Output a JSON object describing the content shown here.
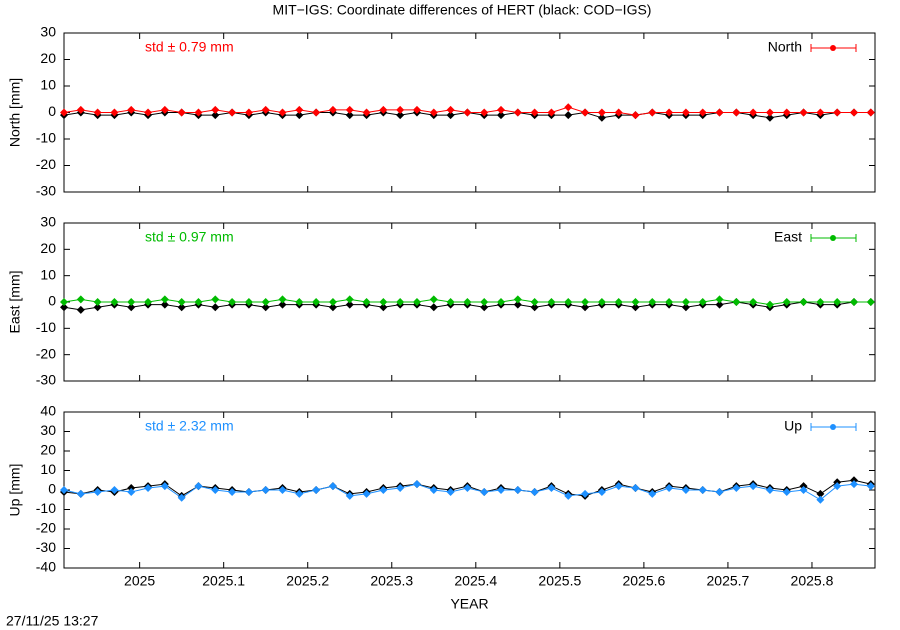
{
  "title": "MIT−IGS: Coordinate differences of HERT (black: COD−IGS)",
  "timestamp": "27/11/25 13:27",
  "chart_data": [
    {
      "type": "line",
      "ylabel": "North [mm]",
      "annotation": "std ± 0.79 mm",
      "ylim": [
        -30,
        30
      ],
      "yticks": [
        -30,
        -20,
        -10,
        0,
        10,
        20,
        30
      ],
      "xlim": [
        2024.91,
        2025.875
      ],
      "x": [
        2024.91,
        2024.93,
        2024.95,
        2024.97,
        2024.99,
        2025.01,
        2025.03,
        2025.05,
        2025.07,
        2025.09,
        2025.11,
        2025.13,
        2025.15,
        2025.17,
        2025.19,
        2025.21,
        2025.23,
        2025.25,
        2025.27,
        2025.29,
        2025.31,
        2025.33,
        2025.35,
        2025.37,
        2025.39,
        2025.41,
        2025.43,
        2025.45,
        2025.47,
        2025.49,
        2025.51,
        2025.53,
        2025.55,
        2025.57,
        2025.59,
        2025.61,
        2025.63,
        2025.65,
        2025.67,
        2025.69,
        2025.71,
        2025.73,
        2025.75,
        2025.77,
        2025.79,
        2025.81,
        2025.83,
        2025.85,
        2025.87
      ],
      "series": [
        {
          "color": "#000000",
          "values": [
            -1,
            0,
            -1,
            -1,
            0,
            -1,
            0,
            0,
            -1,
            -1,
            0,
            -1,
            0,
            -1,
            -1,
            0,
            0,
            -1,
            -1,
            0,
            -1,
            0,
            -1,
            -1,
            0,
            -1,
            -1,
            0,
            -1,
            -1,
            -1,
            0,
            -2,
            -1,
            -1,
            0,
            -1,
            -1,
            -1,
            0,
            0,
            -1,
            -2,
            -1,
            0,
            -1,
            0,
            0,
            0
          ]
        },
        {
          "name": "North",
          "color": "#ff0000",
          "values": [
            0,
            1,
            0,
            0,
            1,
            0,
            1,
            0,
            0,
            1,
            0,
            0,
            1,
            0,
            1,
            0,
            1,
            1,
            0,
            1,
            1,
            1,
            0,
            1,
            0,
            0,
            1,
            0,
            0,
            0,
            2,
            0,
            0,
            0,
            -1,
            0,
            0,
            0,
            0,
            0,
            0,
            0,
            0,
            0,
            0,
            0,
            0,
            0,
            0
          ]
        }
      ]
    },
    {
      "type": "line",
      "ylabel": "East [mm]",
      "annotation": "std ± 0.97 mm",
      "ylim": [
        -30,
        30
      ],
      "yticks": [
        -30,
        -20,
        -10,
        0,
        10,
        20,
        30
      ],
      "xlim": [
        2024.91,
        2025.875
      ],
      "x": [
        2024.91,
        2024.93,
        2024.95,
        2024.97,
        2024.99,
        2025.01,
        2025.03,
        2025.05,
        2025.07,
        2025.09,
        2025.11,
        2025.13,
        2025.15,
        2025.17,
        2025.19,
        2025.21,
        2025.23,
        2025.25,
        2025.27,
        2025.29,
        2025.31,
        2025.33,
        2025.35,
        2025.37,
        2025.39,
        2025.41,
        2025.43,
        2025.45,
        2025.47,
        2025.49,
        2025.51,
        2025.53,
        2025.55,
        2025.57,
        2025.59,
        2025.61,
        2025.63,
        2025.65,
        2025.67,
        2025.69,
        2025.71,
        2025.73,
        2025.75,
        2025.77,
        2025.79,
        2025.81,
        2025.83,
        2025.85,
        2025.87
      ],
      "series": [
        {
          "color": "#000000",
          "values": [
            -2,
            -3,
            -2,
            -1,
            -2,
            -1,
            -1,
            -2,
            -1,
            -2,
            -1,
            -1,
            -2,
            -1,
            -1,
            -1,
            -2,
            -1,
            -1,
            -2,
            -1,
            -1,
            -2,
            -1,
            -1,
            -2,
            -1,
            -1,
            -2,
            -1,
            -1,
            -2,
            -1,
            -1,
            -2,
            -1,
            -1,
            -2,
            -1,
            -1,
            0,
            -1,
            -2,
            -1,
            0,
            -1,
            -1,
            0,
            0
          ]
        },
        {
          "name": "East",
          "color": "#00bb00",
          "values": [
            0,
            1,
            0,
            0,
            0,
            0,
            1,
            0,
            0,
            1,
            0,
            0,
            0,
            1,
            0,
            0,
            0,
            1,
            0,
            0,
            0,
            0,
            1,
            0,
            0,
            0,
            0,
            1,
            0,
            0,
            0,
            0,
            0,
            0,
            0,
            0,
            0,
            0,
            0,
            1,
            0,
            0,
            -1,
            0,
            0,
            0,
            0,
            0,
            0
          ]
        }
      ]
    },
    {
      "type": "line",
      "ylabel": "Up [mm]",
      "annotation": "std ± 2.32 mm",
      "xlabel": "YEAR",
      "ylim": [
        -40,
        40
      ],
      "yticks": [
        -40,
        -30,
        -20,
        -10,
        0,
        10,
        20,
        30,
        40
      ],
      "xlim": [
        2024.91,
        2025.875
      ],
      "xticks": [
        2025,
        2025.1,
        2025.2,
        2025.3,
        2025.4,
        2025.5,
        2025.6,
        2025.7,
        2025.8
      ],
      "x": [
        2024.91,
        2024.93,
        2024.95,
        2024.97,
        2024.99,
        2025.01,
        2025.03,
        2025.05,
        2025.07,
        2025.09,
        2025.11,
        2025.13,
        2025.15,
        2025.17,
        2025.19,
        2025.21,
        2025.23,
        2025.25,
        2025.27,
        2025.29,
        2025.31,
        2025.33,
        2025.35,
        2025.37,
        2025.39,
        2025.41,
        2025.43,
        2025.45,
        2025.47,
        2025.49,
        2025.51,
        2025.53,
        2025.55,
        2025.57,
        2025.59,
        2025.61,
        2025.63,
        2025.65,
        2025.67,
        2025.69,
        2025.71,
        2025.73,
        2025.75,
        2025.77,
        2025.79,
        2025.81,
        2025.83,
        2025.85,
        2025.87
      ],
      "series": [
        {
          "color": "#000000",
          "values": [
            -1,
            -2,
            0,
            -1,
            1,
            2,
            3,
            -3,
            2,
            1,
            0,
            -1,
            0,
            1,
            -1,
            0,
            2,
            -2,
            -1,
            1,
            2,
            3,
            1,
            0,
            2,
            -1,
            1,
            0,
            -1,
            2,
            -2,
            -3,
            0,
            3,
            1,
            -1,
            2,
            1,
            0,
            -1,
            2,
            3,
            1,
            0,
            2,
            -2,
            4,
            5,
            3
          ]
        },
        {
          "name": "Up",
          "color": "#1e90ff",
          "values": [
            0,
            -2,
            -1,
            0,
            -1,
            1,
            2,
            -4,
            2,
            0,
            -1,
            -1,
            0,
            0,
            -2,
            0,
            2,
            -3,
            -2,
            0,
            1,
            3,
            0,
            -1,
            1,
            -1,
            0,
            0,
            -1,
            1,
            -3,
            -2,
            -1,
            2,
            1,
            -2,
            1,
            0,
            0,
            -1,
            1,
            2,
            0,
            -1,
            0,
            -5,
            2,
            3,
            2
          ]
        }
      ]
    }
  ]
}
